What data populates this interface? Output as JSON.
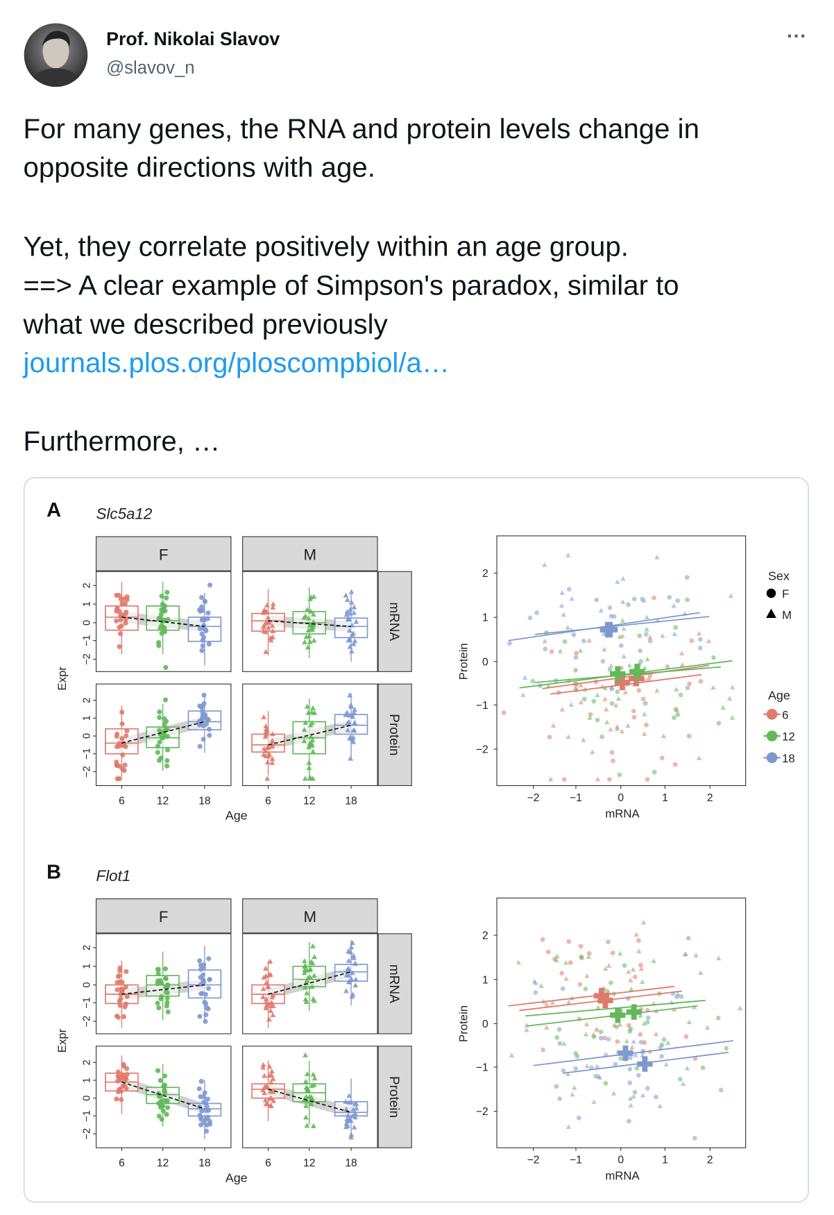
{
  "author": {
    "name": "Prof. Nikolai Slavov",
    "handle": "@slavov_n"
  },
  "menu": "···",
  "tweet": {
    "lines": [
      "For many genes, the RNA and protein levels change in",
      "opposite directions with age.",
      "Yet, they correlate positively within an age group.",
      "==> A clear example of Simpson's paradox, similar to",
      "what we described previously"
    ],
    "link": "journals.plos.org/ploscompbiol/a…",
    "more": "Furthermore, …"
  },
  "figure": {
    "panels": [
      {
        "letter": "A",
        "gene": "Slc5a12",
        "facets": [
          "F",
          "M"
        ],
        "rows": [
          "mRNA",
          "Protein"
        ],
        "y_label": "Expr",
        "y_ticks": [
          "2",
          "1",
          "0",
          "−1",
          "−2"
        ],
        "x_ticks": [
          "6",
          "12",
          "18"
        ],
        "x_label": "Age",
        "scatter": {
          "y_label": "Protein",
          "x_label": "mRNA",
          "y_ticks": [
            "2",
            "1",
            "0",
            "−1",
            "−2"
          ],
          "x_ticks": [
            "−2",
            "−1",
            "0",
            "1",
            "2"
          ]
        }
      },
      {
        "letter": "B",
        "gene": "Flot1",
        "facets": [
          "F",
          "M"
        ],
        "rows": [
          "mRNA",
          "Protein"
        ],
        "y_label": "Expr",
        "y_ticks": [
          "2",
          "1",
          "0",
          "−1",
          "−2"
        ],
        "x_ticks": [
          "6",
          "12",
          "18"
        ],
        "x_label": "Age",
        "scatter": {
          "y_label": "Protein",
          "x_label": "mRNA",
          "y_ticks": [
            "2",
            "1",
            "0",
            "−1",
            "−2"
          ],
          "x_ticks": [
            "−2",
            "−1",
            "0",
            "1",
            "2"
          ]
        }
      }
    ],
    "legend": {
      "sex_title": "Sex",
      "sex": [
        "F",
        "M"
      ],
      "age_title": "Age",
      "ages": [
        "6",
        "12",
        "18"
      ]
    }
  }
}
